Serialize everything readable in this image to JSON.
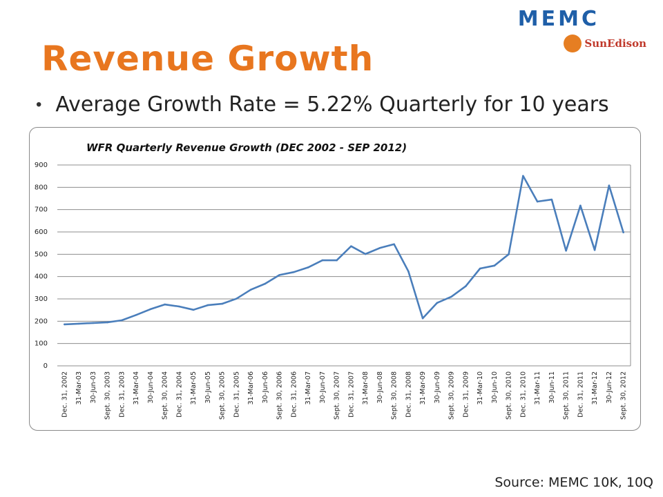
{
  "slide": {
    "title": "Revenue Growth",
    "bullet": "Average Growth Rate = 5.22% Quarterly for 10 years",
    "source": "Source: MEMC 10K, 10Q",
    "logo_primary": "MEMC",
    "logo_secondary": "SunEdison"
  },
  "colors": {
    "title": "#e8761f",
    "line": "#4a7ebb",
    "grid": "#8c8c8c"
  },
  "icons": {
    "bullet": "bullet-dot-icon",
    "logo_mark": "sun-swirl-icon"
  },
  "chart_data": {
    "type": "line",
    "title": "WFR Quarterly Revenue Growth (DEC 2002 - SEP 2012)",
    "xlabel": "",
    "ylabel": "",
    "ylim": [
      0,
      900
    ],
    "yticks": [
      0,
      100,
      200,
      300,
      400,
      500,
      600,
      700,
      800,
      900
    ],
    "grid": true,
    "legend": "none",
    "categories": [
      "Dec. 31, 2002",
      "31-Mar-03",
      "30-Jun-03",
      "Sept. 30, 2003",
      "Dec. 31, 2003",
      "31-Mar-04",
      "30-Jun-04",
      "Sept. 30, 2004",
      "Dec. 31, 2004",
      "31-Mar-05",
      "30-Jun-05",
      "Sept. 30, 2005",
      "Dec. 31, 2005",
      "31-Mar-06",
      "30-Jun-06",
      "Sept. 30, 2006",
      "Dec. 31, 2006",
      "31-Mar-07",
      "30-Jun-07",
      "Sept. 30, 2007",
      "Dec. 31, 2007",
      "31-Mar-08",
      "30-Jun-08",
      "Sept. 30, 2008",
      "Dec. 31, 2008",
      "31-Mar-09",
      "30-Jun-09",
      "Sept. 30, 2009",
      "Dec. 31, 2009",
      "31-Mar-10",
      "30-Jun-10",
      "Sept. 30, 2010",
      "Dec. 31, 2010",
      "31-Mar-11",
      "30-Jun-11",
      "Sept. 30, 2011",
      "Dec. 31, 2011",
      "31-Mar-12",
      "30-Jun-12",
      "Sept. 30, 2012"
    ],
    "series": [
      {
        "values": [
          186,
          189,
          192,
          195,
          204,
          228,
          254,
          275,
          266,
          251,
          272,
          278,
          301,
          341,
          368,
          407,
          420,
          441,
          473,
          473,
          536,
          501,
          528,
          545,
          423,
          213,
          282,
          310,
          357,
          436,
          449,
          500,
          851,
          736,
          745,
          516,
          718,
          519,
          808,
          598
        ]
      }
    ]
  }
}
